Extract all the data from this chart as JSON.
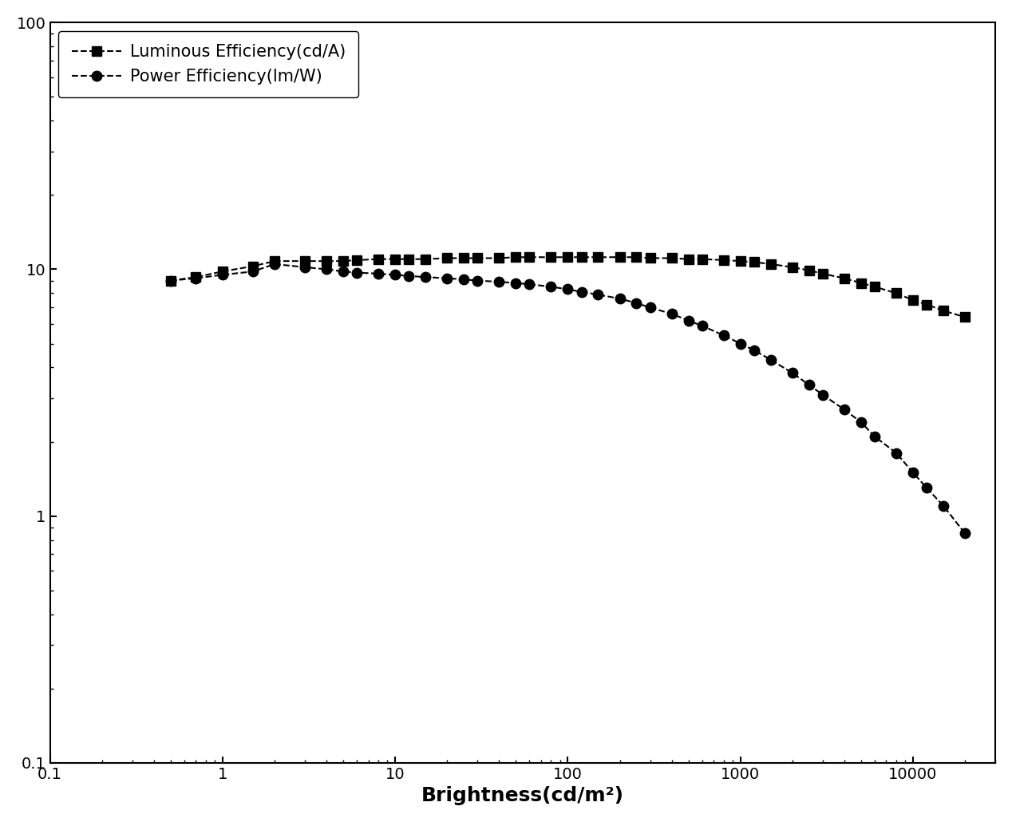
{
  "title": "",
  "xlabel": "Brightness(cd/m²)",
  "ylabel": "",
  "xlim": [
    0.1,
    30000
  ],
  "ylim": [
    0.1,
    100
  ],
  "legend_labels": [
    "Luminous Efficiency(cd/A)",
    "Power Efficiency(lm/W)"
  ],
  "luminous_x": [
    0.5,
    0.7,
    1.0,
    1.5,
    2.0,
    3.0,
    4.0,
    5.0,
    6.0,
    8.0,
    10.0,
    12.0,
    15.0,
    20.0,
    25.0,
    30.0,
    40.0,
    50.0,
    60.0,
    80.0,
    100.0,
    120.0,
    150.0,
    200.0,
    250.0,
    300.0,
    400.0,
    500.0,
    600.0,
    800.0,
    1000.0,
    1200.0,
    1500.0,
    2000.0,
    2500.0,
    3000.0,
    4000.0,
    5000.0,
    6000.0,
    8000.0,
    10000.0,
    12000.0,
    15000.0,
    20000.0
  ],
  "luminous_y": [
    9.0,
    9.3,
    9.8,
    10.3,
    10.8,
    10.8,
    10.8,
    10.8,
    10.9,
    11.0,
    11.0,
    11.0,
    11.0,
    11.1,
    11.1,
    11.1,
    11.1,
    11.2,
    11.2,
    11.2,
    11.2,
    11.2,
    11.2,
    11.2,
    11.2,
    11.1,
    11.1,
    11.0,
    11.0,
    10.9,
    10.8,
    10.7,
    10.5,
    10.2,
    9.9,
    9.6,
    9.2,
    8.8,
    8.5,
    8.0,
    7.5,
    7.2,
    6.8,
    6.4
  ],
  "power_x": [
    0.5,
    0.7,
    1.0,
    1.5,
    2.0,
    3.0,
    4.0,
    5.0,
    6.0,
    8.0,
    10.0,
    12.0,
    15.0,
    20.0,
    25.0,
    30.0,
    40.0,
    50.0,
    60.0,
    80.0,
    100.0,
    120.0,
    150.0,
    200.0,
    250.0,
    300.0,
    400.0,
    500.0,
    600.0,
    800.0,
    1000.0,
    1200.0,
    1500.0,
    2000.0,
    2500.0,
    3000.0,
    4000.0,
    5000.0,
    6000.0,
    8000.0,
    10000.0,
    12000.0,
    15000.0,
    20000.0
  ],
  "power_y": [
    9.0,
    9.2,
    9.5,
    9.8,
    10.5,
    10.2,
    10.0,
    9.8,
    9.7,
    9.6,
    9.5,
    9.4,
    9.3,
    9.2,
    9.1,
    9.0,
    8.9,
    8.8,
    8.7,
    8.5,
    8.3,
    8.1,
    7.9,
    7.6,
    7.3,
    7.0,
    6.6,
    6.2,
    5.9,
    5.4,
    5.0,
    4.7,
    4.3,
    3.8,
    3.4,
    3.1,
    2.7,
    2.4,
    2.1,
    1.8,
    1.5,
    1.3,
    1.1,
    0.85
  ],
  "line_color": "#000000",
  "marker_square": "s",
  "marker_circle": "o",
  "marker_size_sq": 8,
  "marker_size_ci": 9,
  "line_width": 1.5,
  "legend_fontsize": 15,
  "xlabel_fontsize": 18,
  "tick_fontsize": 14,
  "background_color": "#ffffff"
}
